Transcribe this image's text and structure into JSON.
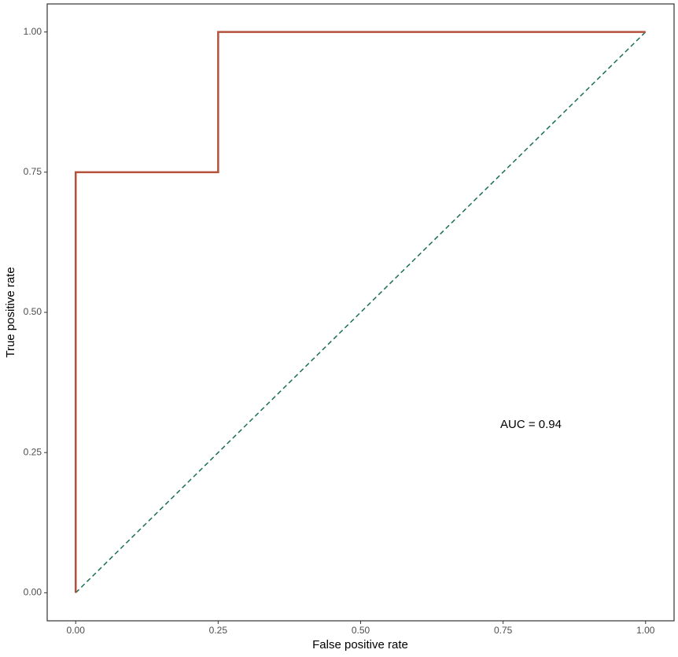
{
  "chart_data": {
    "type": "line",
    "x_label": "False positive rate",
    "y_label": "True positive rate",
    "annotation": "AUC = 0.94",
    "xlim": [
      -0.05,
      1.05
    ],
    "ylim": [
      -0.05,
      1.05
    ],
    "xticks": [
      {
        "value": 0,
        "label": "0.00"
      },
      {
        "value": 0.25,
        "label": "0.25"
      },
      {
        "value": 0.5,
        "label": "0.50"
      },
      {
        "value": 0.75,
        "label": "0.75"
      },
      {
        "value": 1,
        "label": "1.00"
      }
    ],
    "yticks": [
      {
        "value": 0,
        "label": "0.00"
      },
      {
        "value": 0.25,
        "label": "0.25"
      },
      {
        "value": 0.5,
        "label": "0.50"
      },
      {
        "value": 0.75,
        "label": "0.75"
      },
      {
        "value": 1,
        "label": "1.00"
      }
    ],
    "grid": false,
    "series": [
      {
        "color": "#b5513a",
        "dashed": false,
        "x": [
          0,
          0,
          0.25,
          0.25,
          1
        ],
        "values": [
          0,
          0.75,
          0.75,
          1,
          1
        ]
      },
      {
        "color": "#1a6e5a",
        "dashed": true,
        "x": [
          0,
          1
        ],
        "values": [
          0,
          1
        ]
      }
    ]
  }
}
